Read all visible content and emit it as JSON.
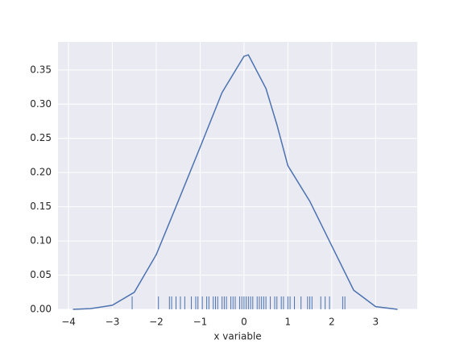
{
  "chart_data": {
    "type": "kde",
    "xlabel": "x variable",
    "x": [
      -3.9,
      -3.5,
      -3,
      -2.5,
      -2,
      -1.5,
      -1,
      -0.5,
      0,
      0.1,
      0.5,
      0.75,
      1,
      1.5,
      2,
      2.5,
      3,
      3.5
    ],
    "values": [
      0.0,
      0.001,
      0.006,
      0.025,
      0.08,
      0.158,
      0.237,
      0.317,
      0.37,
      0.372,
      0.323,
      0.27,
      0.21,
      0.158,
      0.093,
      0.028,
      0.004,
      0.0
    ],
    "rug": [
      -2.55,
      -1.95,
      -1.7,
      -1.65,
      -1.55,
      -1.45,
      -1.35,
      -1.2,
      -1.1,
      -1.05,
      -0.95,
      -0.85,
      -0.8,
      -0.7,
      -0.65,
      -0.6,
      -0.5,
      -0.45,
      -0.4,
      -0.3,
      -0.25,
      -0.2,
      -0.1,
      -0.05,
      0.0,
      0.05,
      0.1,
      0.15,
      0.2,
      0.3,
      0.35,
      0.4,
      0.45,
      0.5,
      0.6,
      0.7,
      0.75,
      0.85,
      0.9,
      1.0,
      1.05,
      1.15,
      1.3,
      1.45,
      1.5,
      1.55,
      1.75,
      1.85,
      1.95,
      2.25,
      2.3
    ],
    "color": "#4c72b0",
    "xlim": [
      -4.24,
      3.95
    ],
    "ylim": [
      0,
      0.391
    ],
    "xticks": [
      {
        "value": -4,
        "label": "−4"
      },
      {
        "value": -3,
        "label": "−3"
      },
      {
        "value": -2,
        "label": "−2"
      },
      {
        "value": -1,
        "label": "−1"
      },
      0,
      1,
      2,
      3
    ],
    "yticks": [
      {
        "value": 0,
        "label": "0.00"
      },
      {
        "value": 0.05,
        "label": "0.05"
      },
      {
        "value": 0.1,
        "label": "0.10"
      },
      {
        "value": 0.15,
        "label": "0.15"
      },
      {
        "value": 0.2,
        "label": "0.20"
      },
      {
        "value": 0.25,
        "label": "0.25"
      },
      {
        "value": 0.3,
        "label": "0.30"
      },
      {
        "value": 0.35,
        "label": "0.35"
      }
    ],
    "grid": true
  }
}
